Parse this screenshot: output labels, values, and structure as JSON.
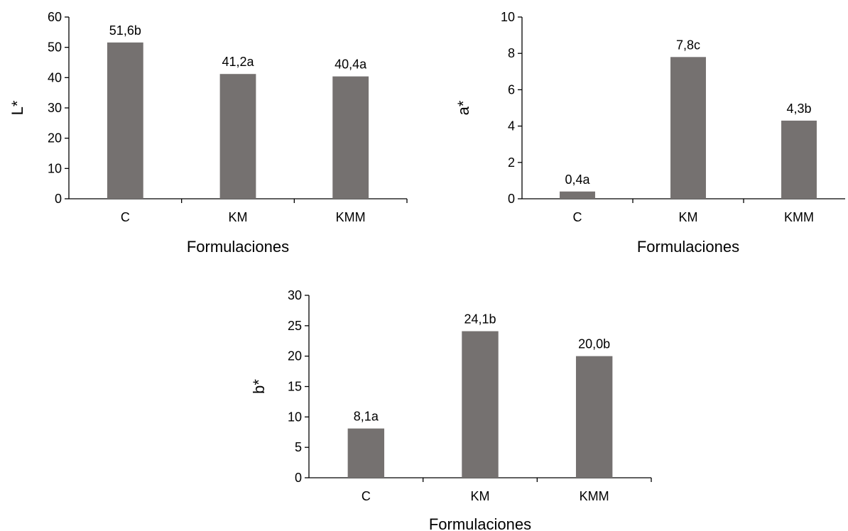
{
  "colors": {
    "bar": "#757170",
    "axis": "#000000"
  },
  "chart_data": [
    {
      "type": "bar",
      "title": "",
      "xlabel": "Formulaciones",
      "ylabel": "L*",
      "ylim": [
        0,
        60
      ],
      "yticks": [
        0,
        10,
        20,
        30,
        40,
        50,
        60
      ],
      "categories": [
        "C",
        "KM",
        "KMM"
      ],
      "values": [
        51.6,
        41.2,
        40.4
      ],
      "data_labels": [
        "51,6b",
        "41,2a",
        "40,4a"
      ],
      "grid": false,
      "legend": "none"
    },
    {
      "type": "bar",
      "title": "",
      "xlabel": "Formulaciones",
      "ylabel": "a*",
      "ylim": [
        0,
        10
      ],
      "yticks": [
        0,
        2,
        4,
        6,
        8,
        10
      ],
      "categories": [
        "C",
        "KM",
        "KMM"
      ],
      "values": [
        0.4,
        7.8,
        4.3
      ],
      "data_labels": [
        "0,4a",
        "7,8c",
        "4,3b"
      ],
      "grid": false,
      "legend": "none"
    },
    {
      "type": "bar",
      "title": "",
      "xlabel": "Formulaciones",
      "ylabel": "b*",
      "ylim": [
        0,
        30
      ],
      "yticks": [
        0,
        5,
        10,
        15,
        20,
        25,
        30
      ],
      "categories": [
        "C",
        "KM",
        "KMM"
      ],
      "values": [
        8.1,
        24.1,
        20.0
      ],
      "data_labels": [
        "8,1a",
        "24,1b",
        "20,0b"
      ],
      "grid": false,
      "legend": "none"
    }
  ]
}
